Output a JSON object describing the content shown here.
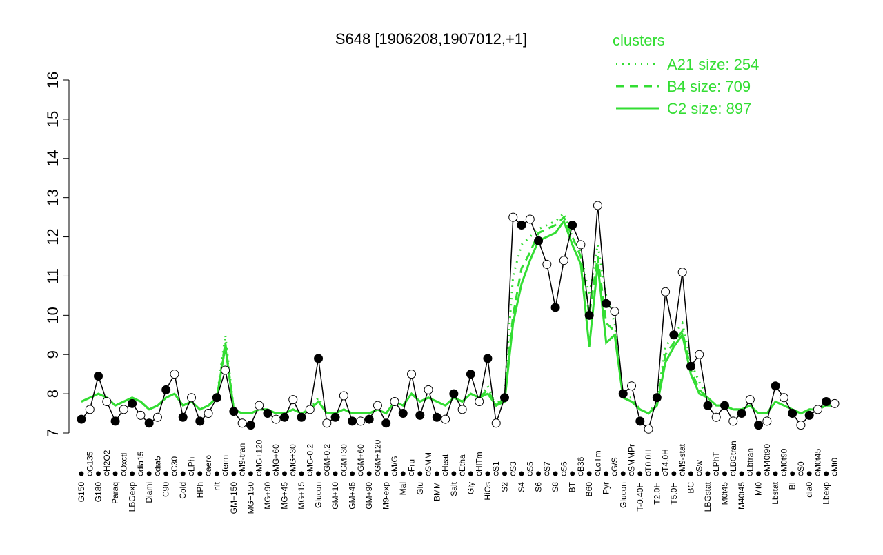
{
  "chart_data": {
    "type": "line",
    "title": "S648 [1906208,1907012,+1]",
    "legend_title": "clusters",
    "legend_position": "top-right",
    "ylim": [
      7,
      16
    ],
    "yticks": [
      7,
      8,
      9,
      10,
      11,
      12,
      13,
      14,
      15,
      16
    ],
    "categories": [
      "G150",
      "G135",
      "G180",
      "H2O2",
      "Paraq",
      "Oxctl",
      "LBGexp",
      "dia15",
      "Diami",
      "dia5",
      "C90",
      "C30",
      "Cold",
      "LPh",
      "HPh",
      "aero",
      "nit",
      "ferm",
      "GM+150",
      "M9-tran",
      "MG+150",
      "MG+120",
      "MG+90",
      "MG+60",
      "MG+45",
      "MG+30",
      "MG+15",
      "MG-0.2",
      "Glucon",
      "GM-0.2",
      "GM+10",
      "GM+30",
      "GM+45",
      "GM+60",
      "GM+90",
      "GM+120",
      "M9-exp",
      "M/G",
      "Mal",
      "Fru",
      "Glu",
      "SMM",
      "BMM",
      "Heat",
      "Salt",
      "Etha",
      "Gly",
      "HiTm",
      "HiOs",
      "S1",
      "S2",
      "S3",
      "S4",
      "S5",
      "S6",
      "S7",
      "S8",
      "S6",
      "BT",
      "B36",
      "B60",
      "LoTm",
      "Pyr",
      "G/S",
      "Glucon",
      "SMMPr",
      "T-0.40H",
      "T0.0H",
      "T2.0H",
      "T4.0H",
      "T5.0H",
      "M9-stat",
      "BC",
      "Sw",
      "LBGstat",
      "LPhT",
      "M0t45",
      "LBGtran",
      "M40t45",
      "Lbtran",
      "Mt0",
      "M40t90",
      "Lbstat",
      "M0t90",
      "BI",
      "S0",
      "dia0",
      "M0t45",
      "Lbexp",
      "Mt0"
    ],
    "values": [
      7.35,
      7.6,
      8.45,
      7.8,
      7.3,
      7.6,
      7.75,
      7.45,
      7.25,
      7.4,
      8.1,
      8.5,
      7.4,
      7.9,
      7.3,
      7.5,
      7.9,
      8.6,
      7.55,
      7.25,
      7.2,
      7.7,
      7.5,
      7.35,
      7.4,
      7.85,
      7.4,
      7.6,
      8.9,
      7.25,
      7.4,
      7.95,
      7.3,
      7.3,
      7.35,
      7.7,
      7.25,
      7.8,
      7.5,
      8.5,
      7.45,
      8.1,
      7.4,
      7.35,
      8.0,
      7.6,
      8.5,
      7.8,
      8.9,
      7.25,
      7.9,
      12.5,
      12.3,
      12.45,
      11.9,
      11.3,
      10.2,
      11.4,
      12.3,
      11.8,
      10.0,
      12.8,
      10.3,
      10.1,
      8.0,
      8.2,
      7.3,
      7.1,
      7.9,
      10.6,
      9.5,
      11.1,
      8.7,
      9.0,
      7.7,
      7.4,
      7.7,
      7.3,
      7.5,
      7.85,
      7.2,
      7.3,
      8.2,
      7.9,
      7.5,
      7.2,
      7.45,
      7.6,
      7.8,
      7.75
    ],
    "color": "#000000",
    "series": [
      {
        "name": "A21 size: 254",
        "color": "#33dd33",
        "dash": "dotted",
        "values": [
          7.8,
          7.9,
          8.0,
          7.9,
          7.7,
          7.8,
          7.9,
          7.8,
          7.6,
          7.7,
          7.9,
          8.0,
          7.7,
          7.8,
          7.6,
          7.7,
          7.9,
          9.5,
          7.6,
          7.5,
          7.5,
          7.6,
          7.6,
          7.5,
          7.5,
          7.6,
          7.5,
          7.6,
          7.9,
          7.5,
          7.5,
          7.6,
          7.5,
          7.5,
          7.5,
          7.6,
          7.5,
          7.8,
          7.7,
          8.0,
          7.8,
          7.9,
          7.8,
          7.7,
          7.9,
          7.8,
          8.0,
          7.9,
          8.2,
          7.7,
          8.0,
          11.0,
          11.8,
          12.0,
          12.2,
          12.3,
          12.4,
          12.6,
          12.0,
          11.6,
          10.5,
          11.8,
          10.5,
          9.8,
          7.9,
          7.9,
          7.6,
          7.5,
          7.8,
          9.2,
          9.5,
          9.8,
          8.8,
          8.3,
          7.9,
          7.7,
          7.7,
          7.6,
          7.6,
          7.7,
          7.5,
          7.5,
          7.8,
          7.7,
          7.6,
          7.5,
          7.6,
          7.6,
          7.7,
          7.7
        ]
      },
      {
        "name": "B4 size: 709",
        "color": "#33dd33",
        "dash": "dashed",
        "values": [
          7.8,
          7.9,
          8.0,
          7.9,
          7.7,
          7.8,
          7.9,
          7.8,
          7.6,
          7.7,
          7.9,
          8.0,
          7.7,
          7.8,
          7.6,
          7.7,
          7.9,
          9.3,
          7.6,
          7.5,
          7.5,
          7.6,
          7.6,
          7.5,
          7.5,
          7.6,
          7.5,
          7.6,
          7.8,
          7.5,
          7.5,
          7.6,
          7.5,
          7.5,
          7.5,
          7.6,
          7.5,
          7.8,
          7.7,
          8.0,
          7.8,
          7.9,
          7.8,
          7.7,
          7.9,
          7.8,
          8.0,
          7.9,
          8.1,
          7.7,
          7.9,
          10.0,
          11.2,
          11.6,
          12.1,
          12.2,
          12.3,
          12.5,
          12.0,
          11.5,
          10.0,
          11.5,
          9.8,
          9.6,
          7.9,
          7.8,
          7.6,
          7.5,
          7.7,
          9.0,
          9.3,
          9.6,
          8.6,
          8.1,
          7.9,
          7.7,
          7.7,
          7.6,
          7.6,
          7.7,
          7.5,
          7.5,
          7.8,
          7.7,
          7.6,
          7.5,
          7.6,
          7.6,
          7.7,
          7.7
        ]
      },
      {
        "name": "C2 size: 897",
        "color": "#33dd33",
        "dash": "solid",
        "values": [
          7.8,
          7.9,
          8.0,
          7.9,
          7.7,
          7.8,
          7.9,
          7.8,
          7.6,
          7.7,
          7.9,
          8.0,
          7.7,
          7.8,
          7.6,
          7.7,
          7.9,
          9.2,
          7.6,
          7.5,
          7.5,
          7.6,
          7.6,
          7.5,
          7.5,
          7.6,
          7.5,
          7.6,
          7.8,
          7.5,
          7.5,
          7.6,
          7.5,
          7.5,
          7.5,
          7.6,
          7.5,
          7.8,
          7.7,
          8.0,
          7.8,
          7.9,
          7.8,
          7.7,
          7.9,
          7.8,
          8.0,
          7.9,
          8.0,
          7.7,
          7.8,
          9.8,
          10.8,
          11.4,
          11.9,
          12.0,
          12.1,
          12.4,
          11.8,
          11.3,
          9.2,
          11.3,
          9.3,
          9.5,
          7.9,
          7.8,
          7.6,
          7.5,
          7.7,
          8.8,
          9.2,
          9.5,
          8.5,
          8.0,
          7.9,
          7.7,
          7.7,
          7.6,
          7.6,
          7.7,
          7.5,
          7.5,
          7.8,
          7.7,
          7.6,
          7.5,
          7.6,
          7.6,
          7.7,
          7.7
        ]
      }
    ]
  }
}
